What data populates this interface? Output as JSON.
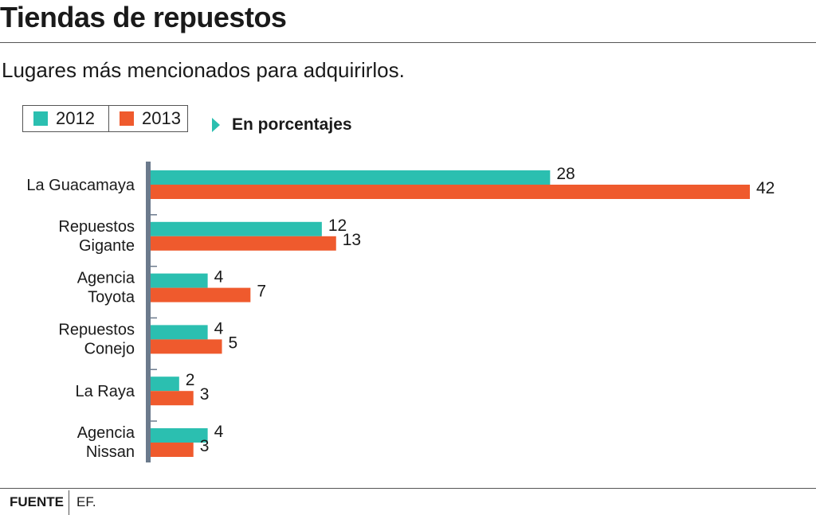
{
  "header": {
    "title": "Tiendas de repuestos",
    "subtitle": "Lugares más mencionados para adquirirlos."
  },
  "legend": {
    "items": [
      {
        "label": "2012",
        "color": "#2bbfb0"
      },
      {
        "label": "2013",
        "color": "#ef5a2d"
      }
    ]
  },
  "note": "En porcentajes",
  "colors": {
    "axis": "#6b7a8c",
    "text": "#1a1a1a"
  },
  "chart_data": {
    "type": "bar",
    "orientation": "horizontal",
    "categories": [
      [
        "La Guacamaya"
      ],
      [
        "Repuestos",
        "Gigante"
      ],
      [
        "Agencia",
        "Toyota"
      ],
      [
        "Repuestos",
        "Conejo"
      ],
      [
        "La Raya"
      ],
      [
        "Agencia",
        "Nissan"
      ]
    ],
    "series": [
      {
        "name": "2012",
        "color": "#2bbfb0",
        "values": [
          28,
          12,
          4,
          4,
          2,
          4
        ]
      },
      {
        "name": "2013",
        "color": "#ef5a2d",
        "values": [
          42,
          13,
          7,
          5,
          3,
          3
        ]
      }
    ],
    "unit": "%",
    "xlim": [
      0,
      42
    ],
    "grid": false
  },
  "footer": {
    "source_label": "FUENTE",
    "source_value": "EF."
  }
}
